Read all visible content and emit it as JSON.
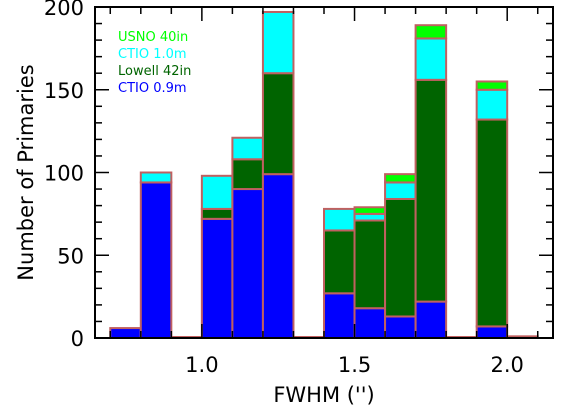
{
  "chart_data": {
    "type": "bar",
    "stacked": true,
    "xlabel": "FWHM ('')",
    "ylabel": "Number of Primaries",
    "xlim": [
      0.65,
      2.15
    ],
    "ylim": [
      0,
      200
    ],
    "grid": false,
    "legend_position": "top-left",
    "x_ticks": [
      1.0,
      1.5,
      2.0
    ],
    "x_tick_labels": [
      "1.0",
      "1.5",
      "2.0"
    ],
    "y_ticks": [
      0,
      50,
      100,
      150,
      200
    ],
    "y_tick_labels": [
      "0",
      "50",
      "100",
      "150",
      "200"
    ],
    "bin_edges": [
      [
        0.7,
        0.8
      ],
      [
        0.8,
        0.9
      ],
      [
        0.9,
        1.0
      ],
      [
        1.0,
        1.1
      ],
      [
        1.1,
        1.2
      ],
      [
        1.2,
        1.3
      ],
      [
        1.3,
        1.4
      ],
      [
        1.4,
        1.5
      ],
      [
        1.5,
        1.6
      ],
      [
        1.6,
        1.7
      ],
      [
        1.7,
        1.8
      ],
      [
        1.8,
        1.9
      ],
      [
        1.9,
        2.0
      ],
      [
        2.0,
        2.1
      ]
    ],
    "series": [
      {
        "name": "CTIO 0.9m",
        "color": "#0000ff",
        "values": [
          6,
          94,
          0,
          72,
          90,
          99,
          0,
          27,
          18,
          13,
          22,
          0,
          7,
          0
        ]
      },
      {
        "name": "Lowell 42in",
        "color": "#006400",
        "values": [
          0,
          0,
          0,
          6,
          18,
          61,
          0,
          38,
          53,
          71,
          134,
          0,
          125,
          0
        ]
      },
      {
        "name": "CTIO 1.0m",
        "color": "#00ffff",
        "values": [
          0,
          6,
          0,
          20,
          13,
          37,
          0,
          13,
          4,
          10,
          25,
          0,
          18,
          0
        ]
      },
      {
        "name": "USNO 40in",
        "color": "#00ff00",
        "values": [
          0,
          0,
          0,
          0,
          0,
          0,
          0,
          0,
          4,
          5,
          8,
          0,
          5,
          1
        ]
      }
    ],
    "legend_order": [
      "USNO 40in",
      "CTIO 1.0m",
      "Lowell 42in",
      "CTIO 0.9m"
    ],
    "bar_edge_color": "#c06060"
  }
}
